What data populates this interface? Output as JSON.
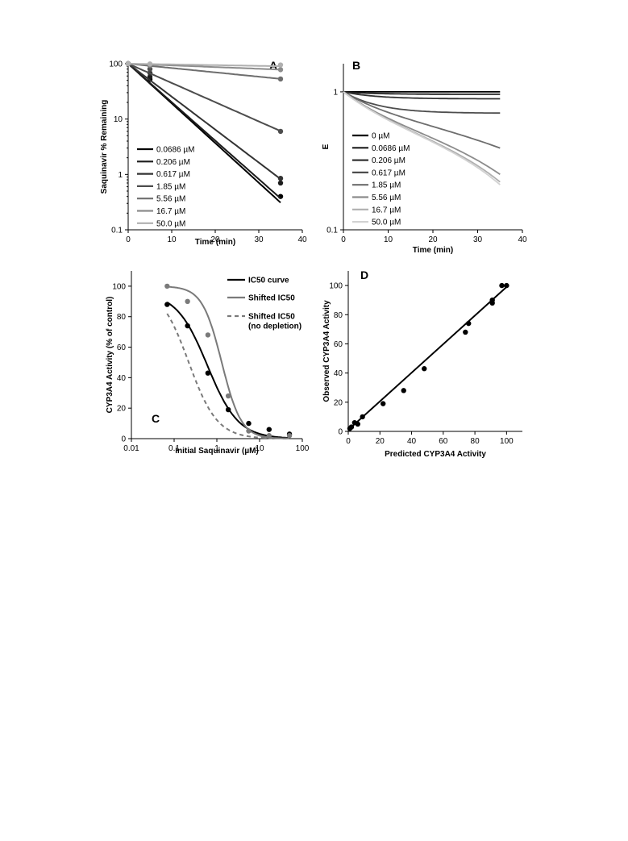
{
  "colors": {
    "shades": [
      "#000000",
      "#1c1c1c",
      "#333333",
      "#4d4d4d",
      "#6e6e6e",
      "#8c8c8c",
      "#b0b0b0",
      "#d2d2d2"
    ],
    "fit_black": "#000000",
    "fit_gray": "#7a7a7a"
  },
  "chart_data": [
    {
      "id": "A",
      "type": "line",
      "panel_label": "A",
      "xlabel": "Time (min)",
      "ylabel": "Saquinavir % Remaining",
      "xlim": [
        0,
        40
      ],
      "ylim": [
        0.1,
        100
      ],
      "yscale": "log",
      "xticks": [
        0,
        10,
        20,
        30,
        40
      ],
      "yticks": [
        0.1,
        1,
        10,
        100
      ],
      "ytick_labels": [
        "0.1",
        "1",
        "10",
        "100"
      ],
      "grid": false,
      "legend_position": "lower-left",
      "series": [
        {
          "name": "0.0686 µM",
          "k": 0.165,
          "points": [
            [
              0,
              100
            ],
            [
              5,
              52
            ],
            [
              35,
              0.4
            ]
          ]
        },
        {
          "name": "0.206 µM",
          "k": 0.16,
          "points": [
            [
              0,
              100
            ],
            [
              5,
              58
            ],
            [
              35,
              0.7
            ]
          ]
        },
        {
          "name": "0.617 µM",
          "k": 0.137,
          "points": [
            [
              0,
              100
            ],
            [
              5,
              68
            ],
            [
              35,
              0.85
            ]
          ]
        },
        {
          "name": "1.85 µM",
          "k": 0.08,
          "points": [
            [
              0,
              100
            ],
            [
              5,
              80
            ],
            [
              35,
              6
            ]
          ]
        },
        {
          "name": "5.56 µM",
          "k": 0.018,
          "points": [
            [
              0,
              100
            ],
            [
              5,
              92
            ],
            [
              35,
              53
            ]
          ]
        },
        {
          "name": "16.7 µM",
          "k": 0.007,
          "points": [
            [
              0,
              100
            ],
            [
              5,
              96
            ],
            [
              35,
              78
            ]
          ]
        },
        {
          "name": "50.0 µM",
          "k": 0.003,
          "points": [
            [
              0,
              100
            ],
            [
              5,
              99
            ],
            [
              35,
              95
            ]
          ]
        }
      ]
    },
    {
      "id": "B",
      "type": "line",
      "panel_label": "B",
      "xlabel": "Time (min)",
      "ylabel": "E",
      "xlim": [
        0,
        40
      ],
      "ylim": [
        0.1,
        1.6
      ],
      "yscale": "log",
      "xticks": [
        0,
        10,
        20,
        30,
        40
      ],
      "yticks": [
        0.1,
        1
      ],
      "ytick_labels": [
        "0.1",
        "1"
      ],
      "grid": false,
      "legend_position": "lower-left",
      "series": [
        {
          "name": "0 µM",
          "end": 1.0
        },
        {
          "name": "0.0686 µM",
          "end": 0.96
        },
        {
          "name": "0.206 µM",
          "end": 0.89
        },
        {
          "name": "0.617 µM",
          "end": 0.7
        },
        {
          "name": "1.85 µM",
          "end": 0.39
        },
        {
          "name": "5.56 µM",
          "end": 0.25
        },
        {
          "name": "16.7 µM",
          "end": 0.22
        },
        {
          "name": "50.0 µM",
          "end": 0.21
        }
      ]
    },
    {
      "id": "C",
      "type": "scatter",
      "panel_label": "C",
      "xlabel": "Initial Saquinavir (µM)",
      "ylabel": "CYP3A4 Activity (% of control)",
      "xlim": [
        0.01,
        100
      ],
      "xscale": "log",
      "ylim": [
        0,
        110
      ],
      "xticks": [
        0.01,
        0.1,
        1,
        10,
        100
      ],
      "xtick_labels": [
        "0.01",
        "0.1",
        "1",
        "10",
        "100"
      ],
      "yticks": [
        0,
        20,
        40,
        60,
        80,
        100
      ],
      "grid": false,
      "legend_position": "top-right",
      "series": [
        {
          "name": "IC50 curve",
          "style": "solid-black",
          "fit": {
            "top": 96,
            "ic50": 0.6,
            "hill": 1.2,
            "xrange": [
              0.0686,
              50
            ]
          },
          "points": [
            [
              0.0686,
              88
            ],
            [
              0.206,
              74
            ],
            [
              0.617,
              43
            ],
            [
              1.85,
              19
            ],
            [
              5.56,
              10
            ],
            [
              16.7,
              6
            ],
            [
              50,
              3
            ]
          ]
        },
        {
          "name": "Shifted IC50",
          "style": "solid-gray",
          "fit": {
            "top": 100,
            "ic50": 1.3,
            "hill": 1.9,
            "xrange": [
              0.0686,
              50
            ]
          },
          "points": [
            [
              0.0686,
              100
            ],
            [
              0.206,
              90
            ],
            [
              0.617,
              68
            ],
            [
              1.85,
              28
            ],
            [
              5.56,
              5
            ],
            [
              16.7,
              2
            ],
            [
              50,
              2
            ]
          ]
        },
        {
          "name": "Shifted IC50\n(no depletion)",
          "style": "dashed-gray",
          "fit": {
            "top": 100,
            "ic50": 0.22,
            "hill": 1.3,
            "xrange": [
              0.0686,
              50
            ]
          },
          "points": []
        }
      ]
    },
    {
      "id": "D",
      "type": "scatter",
      "panel_label": "D",
      "xlabel": "Predicted CYP3A4 Activity",
      "ylabel": "Observed CYP3A4 Activity",
      "xlim": [
        0,
        110
      ],
      "ylim": [
        0,
        110
      ],
      "xticks": [
        0,
        20,
        40,
        60,
        80,
        100
      ],
      "yticks": [
        0,
        20,
        40,
        60,
        80,
        100
      ],
      "grid": false,
      "fit_line": {
        "x": [
          0,
          100
        ],
        "y": [
          1,
          99
        ]
      },
      "points": [
        [
          1,
          2
        ],
        [
          2,
          3
        ],
        [
          4,
          6
        ],
        [
          6,
          5
        ],
        [
          9,
          10
        ],
        [
          22,
          19
        ],
        [
          35,
          28
        ],
        [
          48,
          43
        ],
        [
          74,
          68
        ],
        [
          76,
          74
        ],
        [
          91,
          88
        ],
        [
          91,
          90
        ],
        [
          97,
          100
        ],
        [
          100,
          100
        ]
      ]
    }
  ]
}
